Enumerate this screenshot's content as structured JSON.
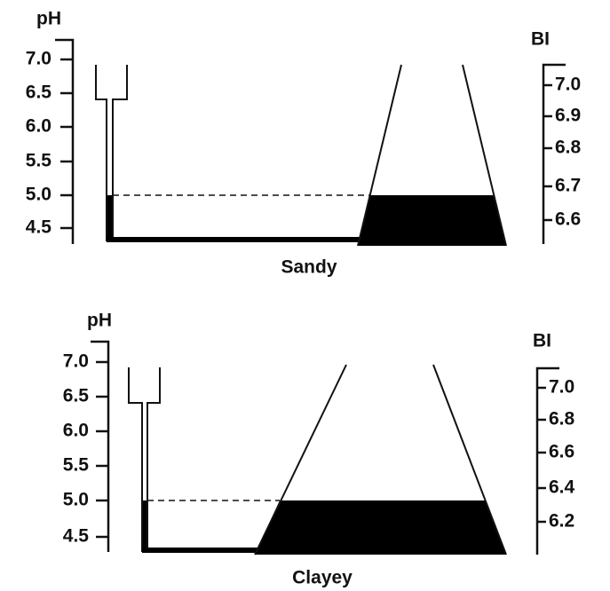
{
  "panels": [
    {
      "ph_label": "pH",
      "ph_ticks": [
        "7.0",
        "6.5",
        "6.0",
        "5.5",
        "5.0",
        "4.5"
      ],
      "bi_label": "BI",
      "bi_ticks": [
        "7.0",
        "6.9",
        "6.8",
        "6.7",
        "6.6"
      ],
      "caption": "Sandy"
    },
    {
      "ph_label": "pH",
      "ph_ticks": [
        "7.0",
        "6.5",
        "6.0",
        "5.5",
        "5.0",
        "4.5"
      ],
      "bi_label": "BI",
      "bi_ticks": [
        "7.0",
        "6.8",
        "6.6",
        "6.4",
        "6.2"
      ],
      "caption": "Clayey"
    }
  ]
}
